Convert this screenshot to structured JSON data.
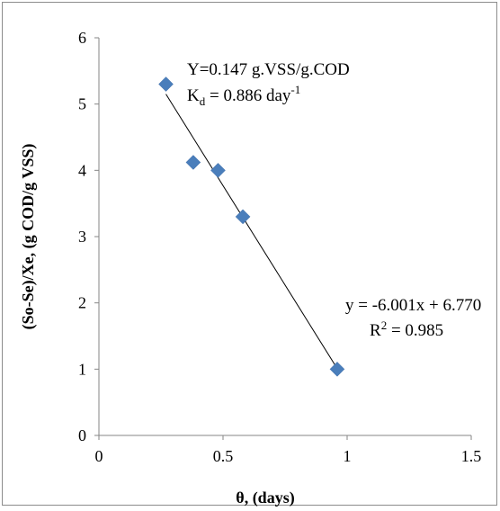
{
  "chart_data": {
    "type": "scatter",
    "title": "",
    "xlabel": "θ, (days)",
    "ylabel": "(So-Se)/Xe, (g COD/g VSS)",
    "xlim": [
      0,
      1.5
    ],
    "ylim": [
      0,
      6
    ],
    "x_ticks": [
      0,
      0.5,
      1,
      1.5
    ],
    "x_tick_labels": [
      "0",
      "0.5",
      "1",
      "1.5"
    ],
    "y_ticks": [
      0,
      1,
      2,
      3,
      4,
      5,
      6
    ],
    "y_tick_labels": [
      "0",
      "1",
      "2",
      "3",
      "4",
      "5",
      "6"
    ],
    "grid": false,
    "legend": "none",
    "marker_color": "#4a7ebb",
    "marker_shape": "diamond",
    "line_color": "#000000",
    "series": [
      {
        "points": [
          {
            "x": 0.27,
            "y": 5.3
          },
          {
            "x": 0.38,
            "y": 4.12
          },
          {
            "x": 0.48,
            "y": 4.0
          },
          {
            "x": 0.58,
            "y": 3.3
          },
          {
            "x": 0.96,
            "y": 1.0
          }
        ]
      }
    ],
    "trendline": {
      "type": "linear",
      "slope": -6.001,
      "intercept": 6.77,
      "x_range": [
        0.27,
        0.96
      ]
    },
    "annotations": {
      "yield_text": "Y=0.147 g.VSS/g.COD",
      "kd_prefix": "K",
      "kd_subscript": "d",
      "kd_value": " = 0.886 day",
      "kd_superscript": "-1",
      "equation_text": "y = -6.001x + 6.770",
      "r2_prefix": "R",
      "r2_superscript": "2",
      "r2_value": " = 0.985"
    }
  }
}
